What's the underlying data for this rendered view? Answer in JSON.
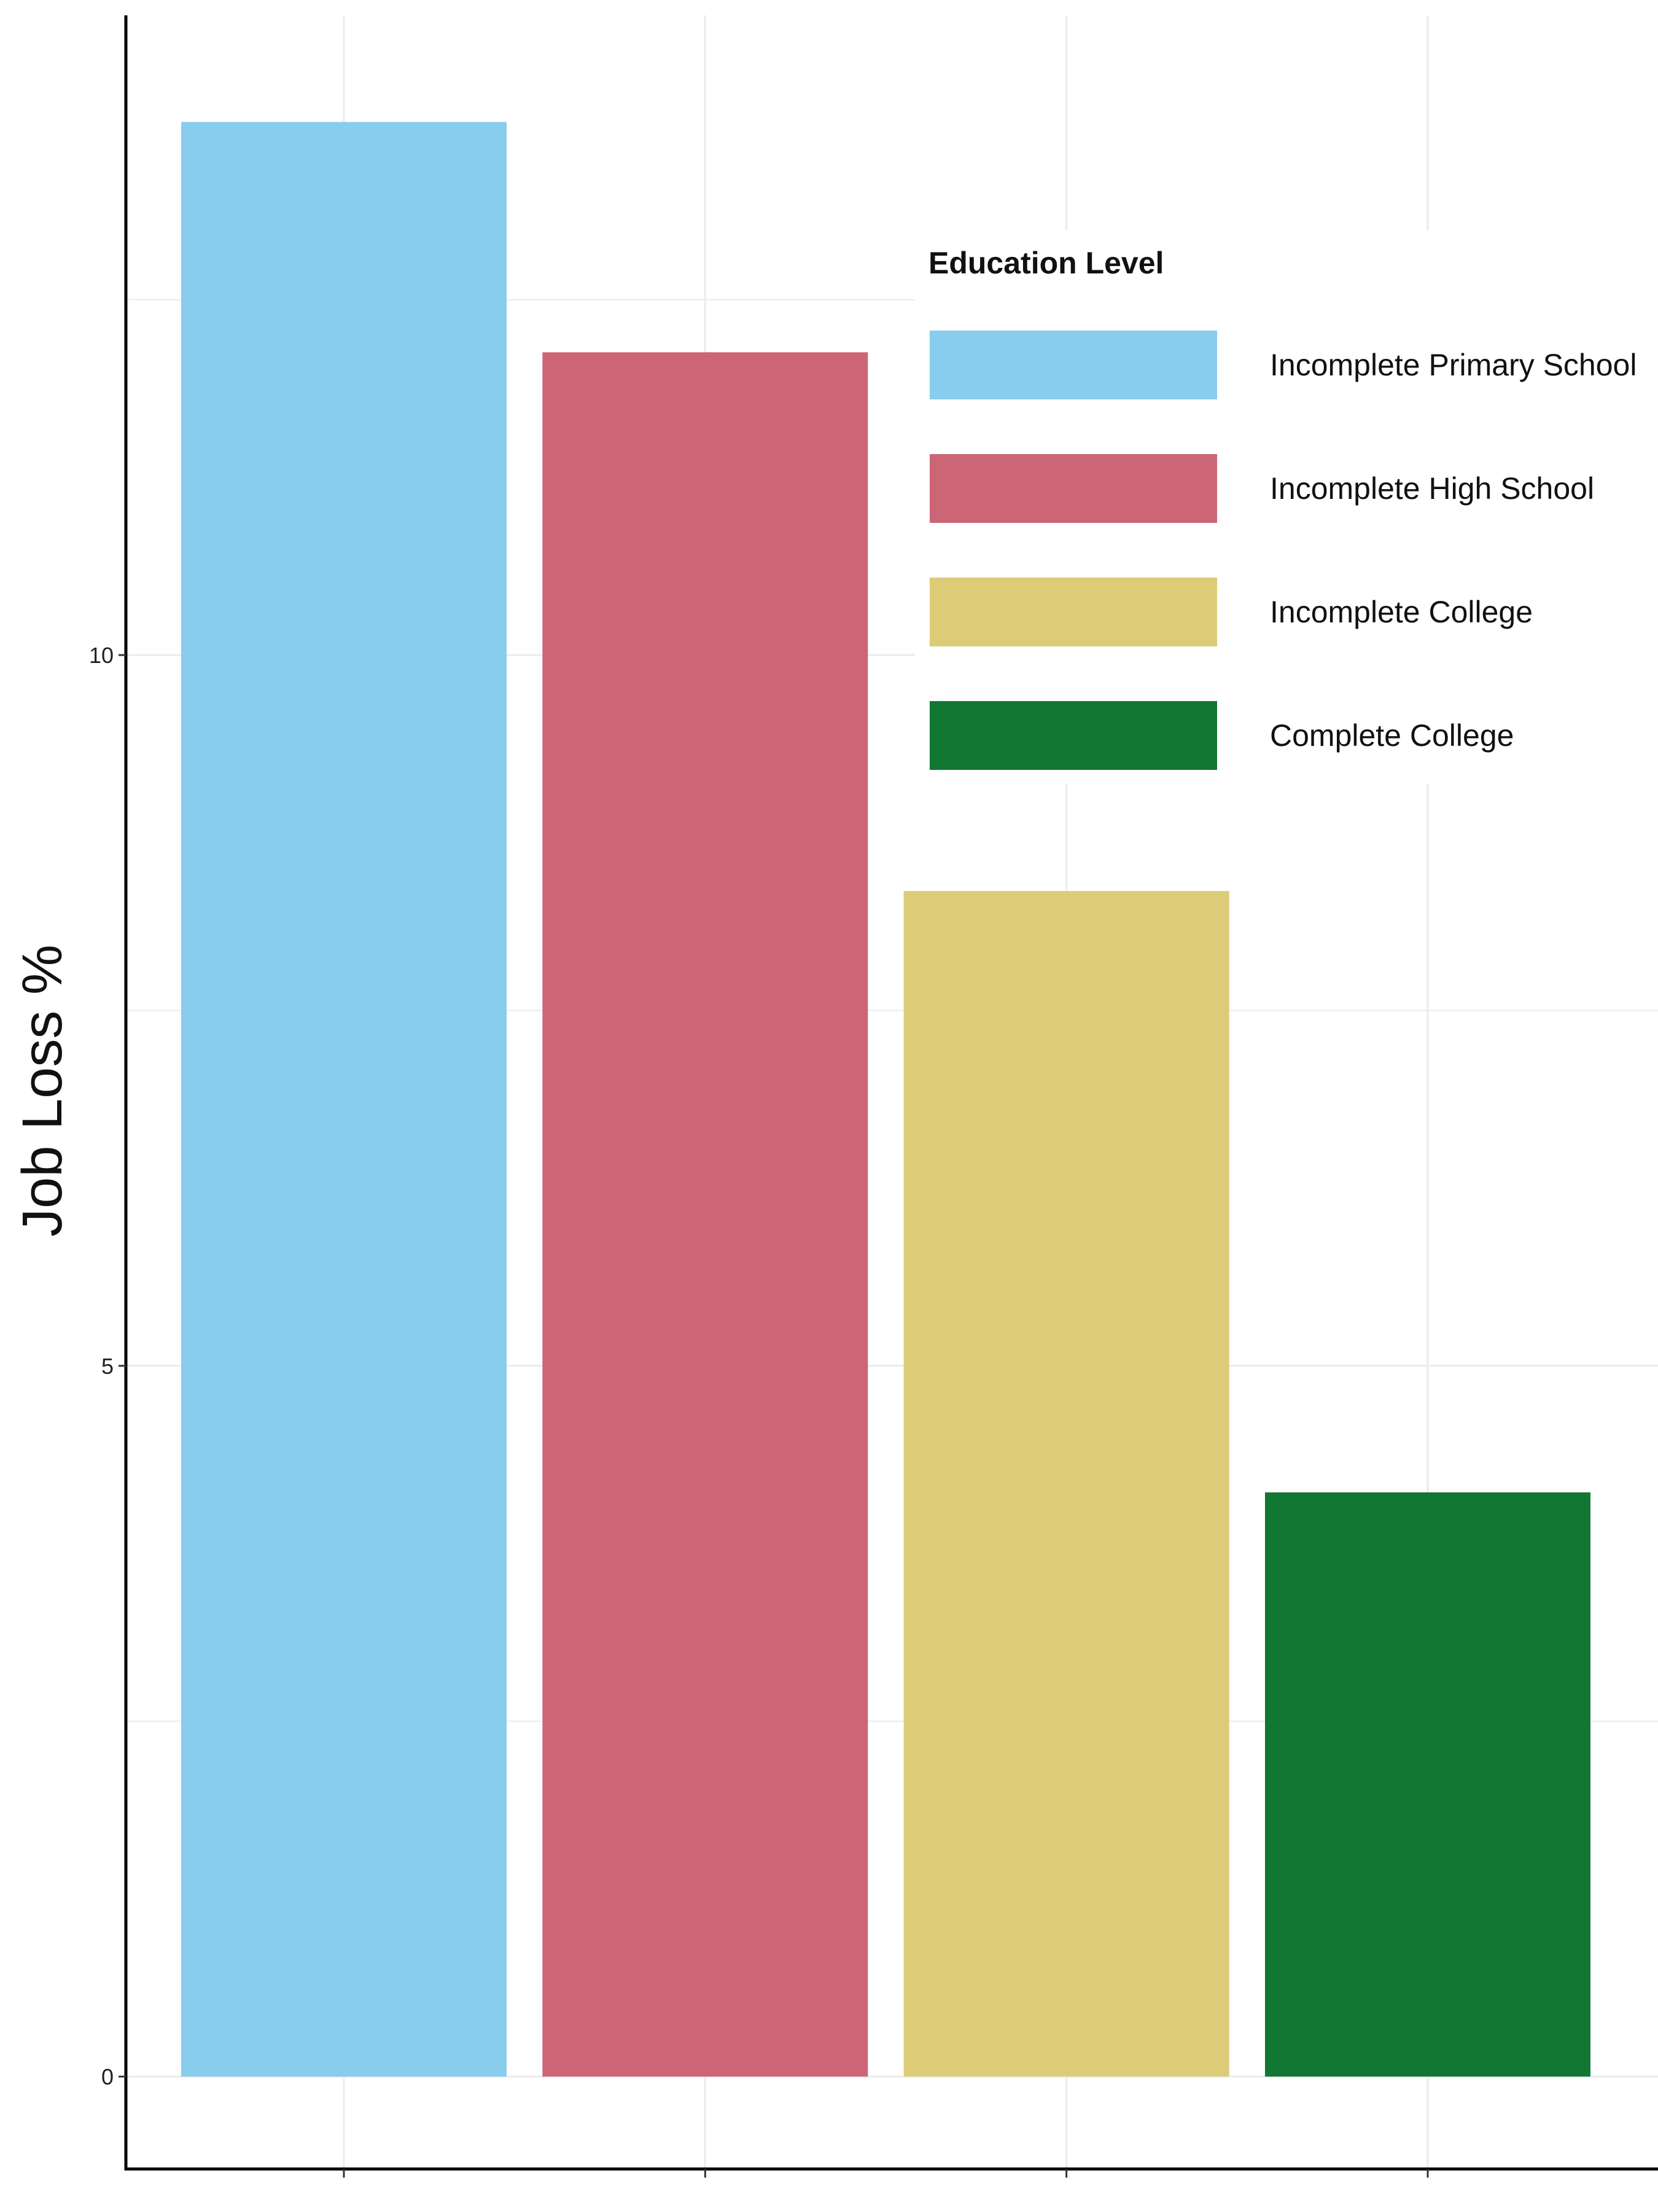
{
  "chart_data": {
    "type": "bar",
    "title": "",
    "xlabel": "",
    "ylabel": "Job Loss %",
    "ylim": [
      -0.65,
      14.5
    ],
    "yticks": [
      0,
      5,
      10
    ],
    "grid": true,
    "legend_position": "top-right",
    "legend_title": "Education Level",
    "categories": [
      "Incomplete Primary School",
      "Incomplete High School",
      "Incomplete College",
      "Complete College"
    ],
    "values": [
      13.75,
      12.13,
      8.34,
      4.11
    ],
    "colors": [
      "#88ccee",
      "#cc6677",
      "#ddcc77",
      "#117733"
    ]
  }
}
